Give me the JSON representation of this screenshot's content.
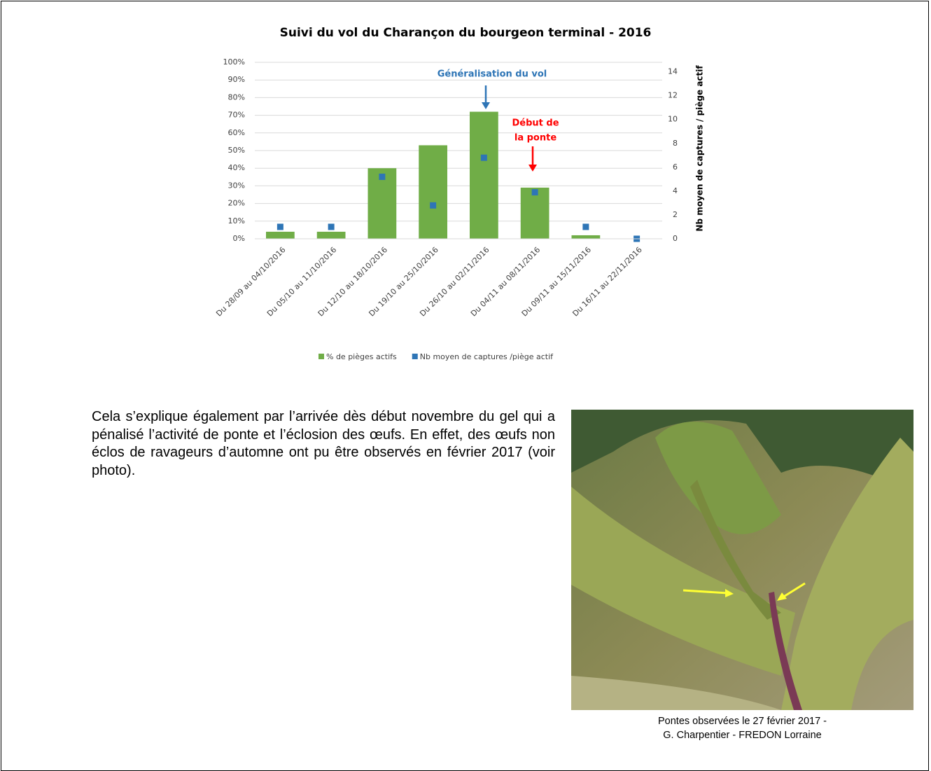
{
  "chart_data": {
    "type": "bar",
    "title": "Suivi du vol du Charançon du bourgeon terminal - 2016",
    "categories": [
      "Du 28/09 au 04/10/2016",
      "Du 05/10 au 11/10/2016",
      "Du 12/10 au 18/10/2016",
      "Du 19/10 au 25/10/2016",
      "Du 26/10 au 02/11/2016",
      "Du 04/11 au 08/11/2016",
      "Du 09/11 au 15/11/2016",
      "Du 16/11 au 22/11/2016"
    ],
    "series": [
      {
        "name": "% de pièges actifs",
        "type": "bar",
        "color": "#70ad47",
        "values": [
          4,
          4,
          40,
          53,
          72,
          29,
          2,
          0
        ]
      },
      {
        "name": "Nb moyen de captures /piège actif",
        "type": "scatter",
        "axis": "y2",
        "color": "#2e75b6",
        "values": [
          1,
          1,
          5.2,
          2.8,
          6.8,
          3.9,
          1,
          0
        ]
      }
    ],
    "ylim": [
      0,
      100
    ],
    "yticks": [
      {
        "value": 0,
        "label": "0%"
      },
      {
        "value": 10,
        "label": "10%"
      },
      {
        "value": 20,
        "label": "20%"
      },
      {
        "value": 30,
        "label": "30%"
      },
      {
        "value": 40,
        "label": "40%"
      },
      {
        "value": 50,
        "label": "50%"
      },
      {
        "value": 60,
        "label": "60%"
      },
      {
        "value": 70,
        "label": "70%"
      },
      {
        "value": 80,
        "label": "80%"
      },
      {
        "value": 90,
        "label": "90%"
      },
      {
        "value": 100,
        "label": "100%"
      }
    ],
    "y2lim": [
      0,
      14.8
    ],
    "y2ticks": [
      0,
      2,
      4,
      6,
      8,
      10,
      12,
      14
    ],
    "y2label": "Nb moyen de captures / piège actif",
    "grid": true,
    "legend": "bottom",
    "annotations": [
      {
        "lines": [
          "Généralisation du vol"
        ],
        "color": "#2e75b6"
      },
      {
        "lines": [
          "Début de",
          "la ponte"
        ],
        "color": "#ff0000"
      }
    ]
  },
  "body_text": "Cela s’explique également par l’arrivée dès début novembre du gel qui a pénalisé l’activité de ponte et l’éclosion des œufs. En effet, des œufs non éclos de ravageurs d’automne ont pu être observés en février 2017 (voir photo).",
  "photo_caption": [
    "Pontes observées le 27 février 2017 -",
    "G. Charpentier - FREDON Lorraine"
  ]
}
